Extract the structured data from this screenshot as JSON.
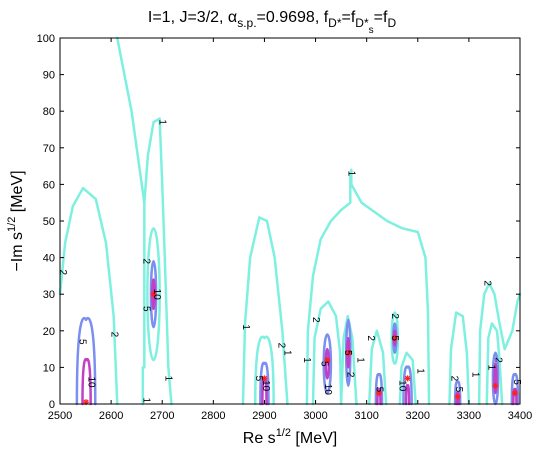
{
  "chart_data": {
    "type": "contour",
    "title_parts": {
      "main": "I=1, J=3/2, α",
      "sub_sp": "s.p.",
      "alpha_value": "=0.9698,  f",
      "sub_dstar": "D*",
      "eq1": "=f",
      "sub_dsstar": "D*",
      "sub_s": "s",
      "eq2": "=f",
      "sub_d": "D"
    },
    "xlabel": "Re s",
    "xlabel_sup": "1/2",
    "xlabel_unit": " [MeV]",
    "ylabel": "−Im s",
    "ylabel_sup": "1/2",
    "ylabel_unit": " [MeV]",
    "xlim": [
      2500,
      3400
    ],
    "ylim": [
      0,
      100
    ],
    "x_ticks": [
      "2500",
      "2600",
      "2700",
      "2800",
      "2900",
      "3000",
      "3100",
      "3200",
      "3300",
      "3400"
    ],
    "y_ticks": [
      "0",
      "10",
      "20",
      "30",
      "40",
      "50",
      "60",
      "70",
      "80",
      "90",
      "100"
    ],
    "levels": [
      {
        "level": 1,
        "color": "#7ef0e0"
      },
      {
        "level": 2,
        "color": "#7ef0e0"
      },
      {
        "level": 5,
        "color": "#7b8ff0"
      },
      {
        "level": 10,
        "color": "#c040c8"
      }
    ],
    "poles": [
      {
        "x": 2551,
        "y": 0.5
      },
      {
        "x": 2683,
        "y": 30
      },
      {
        "x": 2900,
        "y": 7
      },
      {
        "x": 3023,
        "y": 12
      },
      {
        "x": 3065,
        "y": 14
      },
      {
        "x": 3124,
        "y": 3
      },
      {
        "x": 3155,
        "y": 18
      },
      {
        "x": 3180,
        "y": 7
      },
      {
        "x": 3278,
        "y": 2
      },
      {
        "x": 3352,
        "y": 5
      },
      {
        "x": 3390,
        "y": 3
      }
    ],
    "contour_labels": [
      {
        "text": "2",
        "x": 2505,
        "y": 36
      },
      {
        "text": "5",
        "x": 2543,
        "y": 17
      },
      {
        "text": "10",
        "x": 2561,
        "y": 6
      },
      {
        "text": "2",
        "x": 2606,
        "y": 19
      },
      {
        "text": "1",
        "x": 2700,
        "y": 77
      },
      {
        "text": "2",
        "x": 2669,
        "y": 39
      },
      {
        "text": "5",
        "x": 2669,
        "y": 26
      },
      {
        "text": "10",
        "x": 2689,
        "y": 30
      },
      {
        "text": "1",
        "x": 2712,
        "y": 7
      },
      {
        "text": "1",
        "x": 2669,
        "y": 1
      },
      {
        "text": "1",
        "x": 2863,
        "y": 21
      },
      {
        "text": "2",
        "x": 2933,
        "y": 16
      },
      {
        "text": "1",
        "x": 2944,
        "y": 14
      },
      {
        "text": "5",
        "x": 2889,
        "y": 7
      },
      {
        "text": "10",
        "x": 2902,
        "y": 5
      },
      {
        "text": "2",
        "x": 3000,
        "y": 23
      },
      {
        "text": "1",
        "x": 2983,
        "y": 12
      },
      {
        "text": "5",
        "x": 3017,
        "y": 11
      },
      {
        "text": "10",
        "x": 3024,
        "y": 4
      },
      {
        "text": "5",
        "x": 3063,
        "y": 14
      },
      {
        "text": "2",
        "x": 3068,
        "y": 8
      },
      {
        "text": "1",
        "x": 3087,
        "y": 12
      },
      {
        "text": "1",
        "x": 3070,
        "y": 63
      },
      {
        "text": "2",
        "x": 3108,
        "y": 18
      },
      {
        "text": "5",
        "x": 3124,
        "y": 4
      },
      {
        "text": "2",
        "x": 3155,
        "y": 24
      },
      {
        "text": "5",
        "x": 3155,
        "y": 18
      },
      {
        "text": "10",
        "x": 3169,
        "y": 5
      },
      {
        "text": "1",
        "x": 3205,
        "y": 9
      },
      {
        "text": "2",
        "x": 3271,
        "y": 7
      },
      {
        "text": "5",
        "x": 3280,
        "y": 4
      },
      {
        "text": "1",
        "x": 3312,
        "y": 8
      },
      {
        "text": "1",
        "x": 3344,
        "y": 10
      },
      {
        "text": "2",
        "x": 3336,
        "y": 33
      },
      {
        "text": "5",
        "x": 3393,
        "y": 6
      },
      {
        "text": "2",
        "x": 3357,
        "y": 12
      }
    ]
  }
}
